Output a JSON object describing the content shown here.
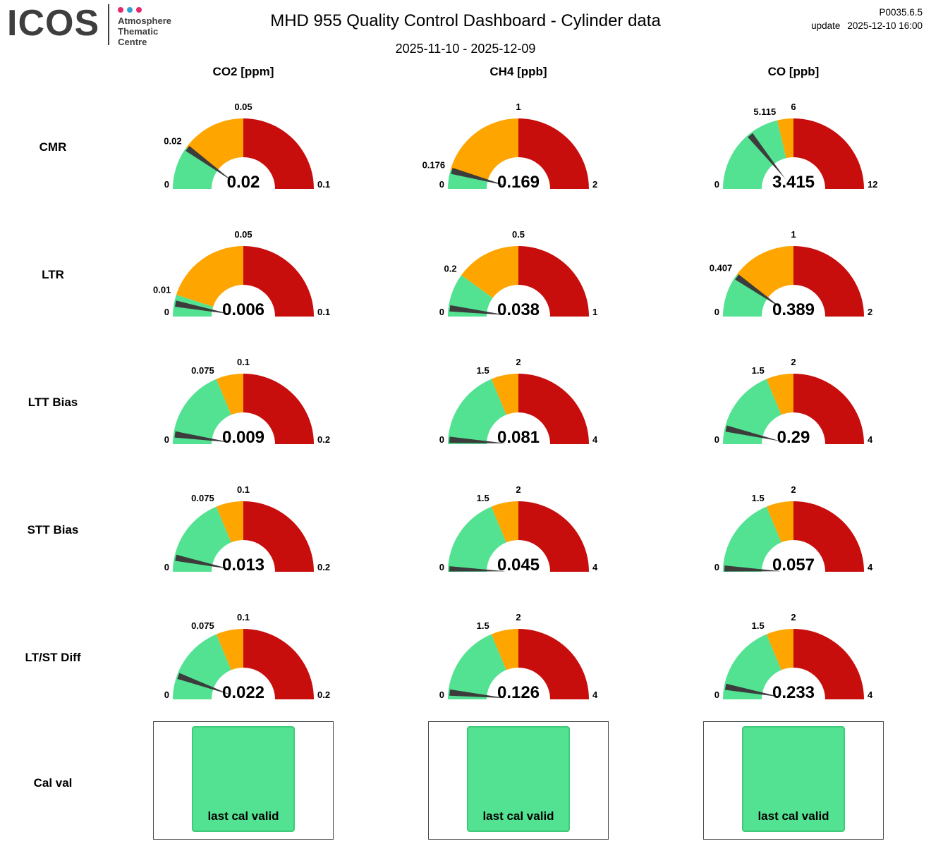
{
  "header": {
    "logo_text": "ICOS",
    "logo_subtitle_lines": [
      "Atmosphere",
      "Thematic",
      "Centre"
    ],
    "logo_dot_colors": [
      "#e6286e",
      "#32a0d7",
      "#e6286e"
    ],
    "title": "MHD 955 Quality Control Dashboard - Cylinder data",
    "date_range": "2025-11-10 - 2025-12-09",
    "version": "P0035.6.5",
    "update_label": "update",
    "update_time": "2025-12-10 16:00"
  },
  "column_headers": [
    "CO2 [ppm]",
    "CH4 [ppb]",
    "CO [ppb]"
  ],
  "row_labels": [
    "CMR",
    "LTR",
    "LTT Bias",
    "STT Bias",
    "LT/ST Diff",
    "Cal val"
  ],
  "colors": {
    "green": "#53e292",
    "orange": "#ffa500",
    "red": "#c80d0d",
    "needle": "#3c3c3c",
    "cal_border": "#3fca7c"
  },
  "chart_data": {
    "type": "gauge",
    "layout": {
      "columns": [
        "CO2 [ppm]",
        "CH4 [ppb]",
        "CO [ppb]"
      ],
      "rows": [
        "CMR",
        "LTR",
        "LTT Bias",
        "STT Bias",
        "LT/ST Diff"
      ],
      "legend": "green = good, orange = warning, red = bad; needle shows current value"
    },
    "gauges": [
      {
        "row": "CMR",
        "col": "CO2 [ppm]",
        "min": 0,
        "max": 0.1,
        "thresholds": [
          0.02,
          0.05
        ],
        "value": 0.02,
        "value_label": "0.02",
        "tick_labels": [
          "0",
          "0.02",
          "0.05",
          "0.1"
        ]
      },
      {
        "row": "CMR",
        "col": "CH4 [ppb]",
        "min": 0,
        "max": 2,
        "thresholds": [
          0.176,
          1
        ],
        "value": 0.169,
        "value_label": "0.169",
        "tick_labels": [
          "0",
          "0.176",
          "1",
          "2"
        ]
      },
      {
        "row": "CMR",
        "col": "CO [ppb]",
        "min": 0,
        "max": 12,
        "thresholds": [
          5.115,
          6
        ],
        "value": 3.415,
        "value_label": "3.415",
        "tick_labels": [
          "0",
          "5.115",
          "6",
          "12"
        ]
      },
      {
        "row": "LTR",
        "col": "CO2 [ppm]",
        "min": 0,
        "max": 0.1,
        "thresholds": [
          0.01,
          0.05
        ],
        "value": 0.006,
        "value_label": "0.006",
        "tick_labels": [
          "0",
          "0.01",
          "0.05",
          "0.1"
        ]
      },
      {
        "row": "LTR",
        "col": "CH4 [ppb]",
        "min": 0,
        "max": 1,
        "thresholds": [
          0.2,
          0.5
        ],
        "value": 0.038,
        "value_label": "0.038",
        "tick_labels": [
          "0",
          "0.2",
          "0.5",
          "1"
        ]
      },
      {
        "row": "LTR",
        "col": "CO [ppb]",
        "min": 0,
        "max": 2,
        "thresholds": [
          0.407,
          1
        ],
        "value": 0.389,
        "value_label": "0.389",
        "tick_labels": [
          "0",
          "0.407",
          "1",
          "2"
        ]
      },
      {
        "row": "LTT Bias",
        "col": "CO2 [ppm]",
        "min": 0,
        "max": 0.2,
        "thresholds": [
          0.075,
          0.1
        ],
        "value": 0.009,
        "value_label": "0.009",
        "tick_labels": [
          "0",
          "0.075",
          "0.1",
          "0.2"
        ]
      },
      {
        "row": "LTT Bias",
        "col": "CH4 [ppb]",
        "min": 0,
        "max": 4,
        "thresholds": [
          1.5,
          2
        ],
        "value": 0.081,
        "value_label": "0.081",
        "tick_labels": [
          "0",
          "1.5",
          "2",
          "4"
        ]
      },
      {
        "row": "LTT Bias",
        "col": "CO [ppb]",
        "min": 0,
        "max": 4,
        "thresholds": [
          1.5,
          2
        ],
        "value": 0.29,
        "value_label": "0.29",
        "tick_labels": [
          "0",
          "1.5",
          "2",
          "4"
        ]
      },
      {
        "row": "STT Bias",
        "col": "CO2 [ppm]",
        "min": 0,
        "max": 0.2,
        "thresholds": [
          0.075,
          0.1
        ],
        "value": 0.013,
        "value_label": "0.013",
        "tick_labels": [
          "0",
          "0.075",
          "0.1",
          "0.2"
        ]
      },
      {
        "row": "STT Bias",
        "col": "CH4 [ppb]",
        "min": 0,
        "max": 4,
        "thresholds": [
          1.5,
          2
        ],
        "value": 0.045,
        "value_label": "0.045",
        "tick_labels": [
          "0",
          "1.5",
          "2",
          "4"
        ]
      },
      {
        "row": "STT Bias",
        "col": "CO [ppb]",
        "min": 0,
        "max": 4,
        "thresholds": [
          1.5,
          2
        ],
        "value": 0.057,
        "value_label": "0.057",
        "tick_labels": [
          "0",
          "1.5",
          "2",
          "4"
        ]
      },
      {
        "row": "LT/ST Diff",
        "col": "CO2 [ppm]",
        "min": 0,
        "max": 0.2,
        "thresholds": [
          0.075,
          0.1
        ],
        "value": 0.022,
        "value_label": "0.022",
        "tick_labels": [
          "0",
          "0.075",
          "0.1",
          "0.2"
        ]
      },
      {
        "row": "LT/ST Diff",
        "col": "CH4 [ppb]",
        "min": 0,
        "max": 4,
        "thresholds": [
          1.5,
          2
        ],
        "value": 0.126,
        "value_label": "0.126",
        "tick_labels": [
          "0",
          "1.5",
          "2",
          "4"
        ]
      },
      {
        "row": "LT/ST Diff",
        "col": "CO [ppb]",
        "min": 0,
        "max": 4,
        "thresholds": [
          1.5,
          2
        ],
        "value": 0.233,
        "value_label": "0.233",
        "tick_labels": [
          "0",
          "1.5",
          "2",
          "4"
        ]
      }
    ],
    "cal_val": {
      "row": "Cal val",
      "cells": [
        {
          "col": "CO2 [ppm]",
          "label": "last cal valid",
          "status": "valid"
        },
        {
          "col": "CH4 [ppb]",
          "label": "last cal valid",
          "status": "valid"
        },
        {
          "col": "CO [ppb]",
          "label": "last cal valid",
          "status": "valid"
        }
      ]
    }
  }
}
